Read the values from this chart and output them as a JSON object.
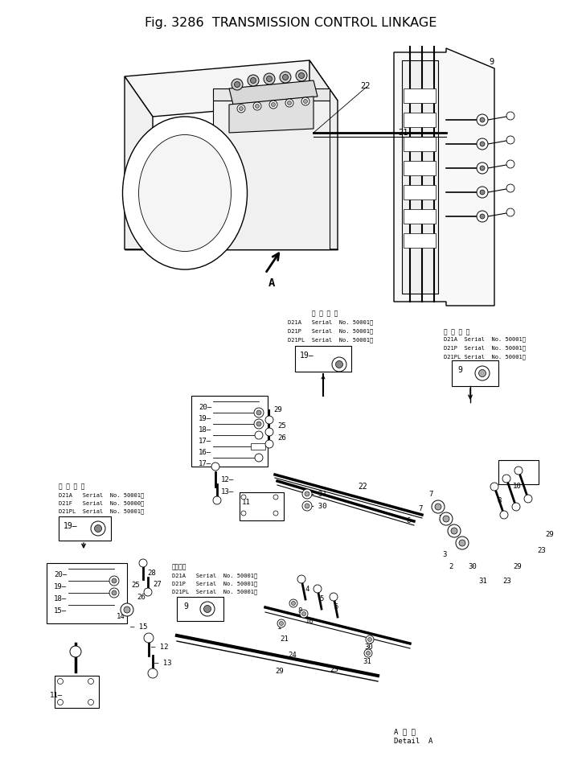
{
  "title": "Fig. 3286  TRANSMISSION CONTROL LINKAGE",
  "title_fontsize": 11.5,
  "bg_color": "#ffffff",
  "line_color": "#000000",
  "fig_width": 7.24,
  "fig_height": 9.56,
  "dpi": 100,
  "detail_a": "A 詳 細\nDetail  A",
  "serial_center_top": [
    "適 用 号 艦",
    "D21A   Serial  No. 50001～",
    "D21P   Serial  No. 50001～",
    "D21PL  Serial  No. 50001～"
  ],
  "serial_right_top": [
    "油 用 号 艦",
    "D21A   Serial  No. 50001～",
    "D21P   Serial  No. 50001～",
    "D21PL  Serial  No. 50001～"
  ],
  "serial_left_mid": [
    "適 用 号 油",
    "D21A   Serial  No. 50001～",
    "D21F   Serial  No. 50000～",
    "D21PL  Serial  No. 50001～"
  ],
  "serial_center_mid": [
    "適用号艦",
    "D21A   Serial  No. 50001～",
    "D21P   Serial  No. 50001～",
    "D21PL  Serial  No. 50001～"
  ]
}
